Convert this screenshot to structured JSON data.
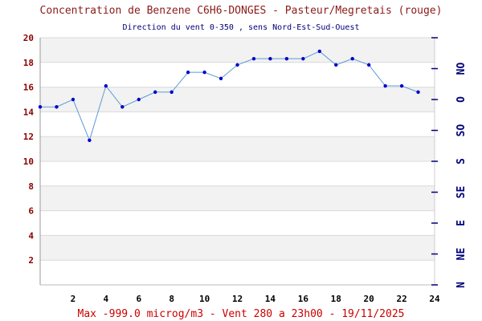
{
  "header": {
    "title": "Concentration de Benzene C6H6-DONGES - Pasteur/Megretais (rouge)",
    "subtitle": "Direction du vent 0-350 , sens Nord-Est-Sud-Ouest"
  },
  "footer": {
    "text": "Max -999.0 microg/m3 - Vent 280  a 23h00 - 19/11/2025"
  },
  "colors": {
    "line": "#5b9bd5",
    "marker": "#0000cc",
    "band": "#f2f2f2",
    "grid": "#d9d9d9",
    "right_axis": "#00007a"
  },
  "chart_data": {
    "type": "line",
    "title": "Concentration de Benzene C6H6-DONGES - Pasteur/Megretais (rouge)",
    "subtitle": "Direction du vent 0-350 , sens Nord-Est-Sud-Ouest",
    "xlim": [
      0,
      24
    ],
    "ylim": [
      0,
      20
    ],
    "x_ticks": [
      "2",
      "4",
      "6",
      "8",
      "10",
      "12",
      "14",
      "16",
      "18",
      "20",
      "22",
      "24"
    ],
    "y_ticks": [
      "2",
      "4",
      "6",
      "8",
      "10",
      "12",
      "14",
      "16",
      "18",
      "20"
    ],
    "right_axis_labels": [
      "N",
      "NE",
      "E",
      "SE",
      "S",
      "SO",
      "O",
      "NO"
    ],
    "grid": true,
    "series": [
      {
        "x": [
          0,
          1,
          2,
          3,
          4,
          5,
          6,
          7,
          8,
          9,
          10,
          11,
          12,
          13,
          14,
          15,
          16,
          17,
          18,
          19,
          20,
          21,
          22,
          23
        ],
        "values": [
          14.4,
          14.4,
          15.0,
          11.7,
          16.1,
          14.4,
          15.0,
          15.6,
          15.6,
          17.2,
          17.2,
          16.7,
          17.8,
          18.3,
          18.3,
          18.3,
          18.3,
          18.9,
          17.8,
          18.3,
          17.8,
          16.1,
          16.1,
          15.6
        ]
      }
    ]
  }
}
